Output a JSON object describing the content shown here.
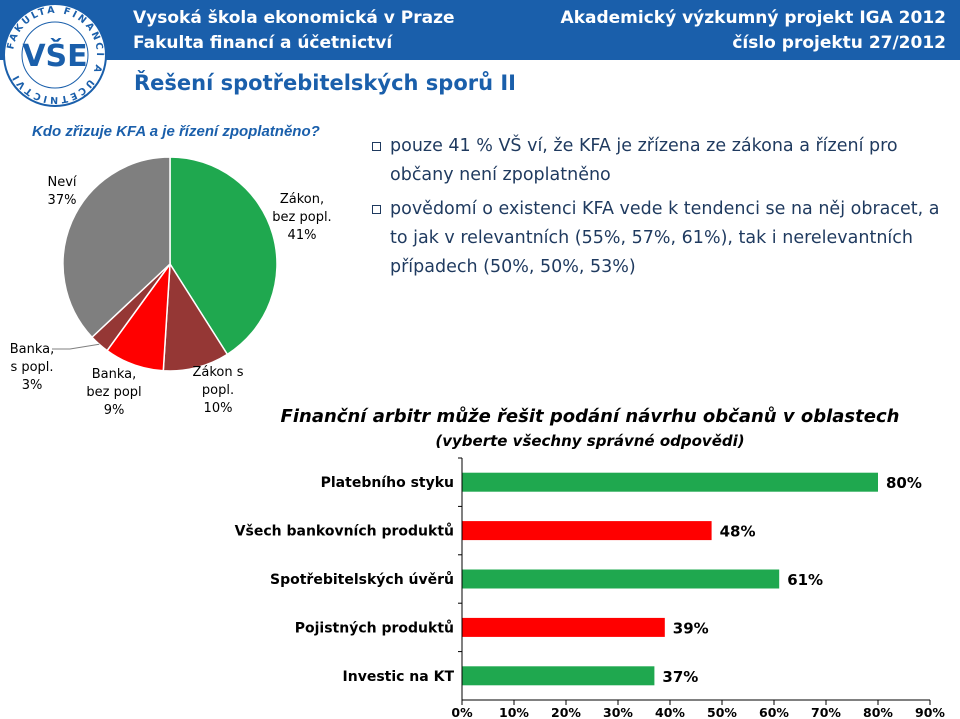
{
  "header": {
    "left_line1": "Vysoká škola ekonomická v Praze",
    "left_line2": "Fakulta financí a účetnictví",
    "right_line1": "Akademický výzkumný projekt IGA 2012",
    "right_line2": "číslo projektu 27/2012",
    "logo_text": "VŠE",
    "logo_ring_text": "FAKULTA FINANCÍ A ÚČETNICTVÍ"
  },
  "slide_title": "Řešení spotřebitelských sporů II",
  "colors": {
    "header_bg": "#1a5fab",
    "green": "#1fa84f",
    "red": "#ff0000",
    "dark_red": "#953735",
    "gray": "#7f7f7f",
    "title_blue": "#1a5fab",
    "bullet_text": "#1f3a5f"
  },
  "bullets": [
    "pouze 41 % VŠ ví, že KFA je zřízena ze zákona a řízení pro občany není zpoplatněno",
    "povědomí o existenci KFA vede k tendenci se na něj obracet, a to jak v relevantních (55%, 57%, 61%), tak i nerelevantních případech (50%, 50%, 53%)"
  ],
  "chart_data": [
    {
      "type": "pie",
      "title": "Kdo zřizuje KFA a je řízení zpoplatněno?",
      "slices": [
        {
          "label": "Zákon, bez popl.",
          "value": 41,
          "value_label": "41%",
          "color": "#1fa84f"
        },
        {
          "label": "Zákon s popl.",
          "value": 10,
          "value_label": "10%",
          "color": "#953735"
        },
        {
          "label": "Banka, bez popl",
          "value": 9,
          "value_label": "9%",
          "color": "#ff0000"
        },
        {
          "label": "Banka, s popl.",
          "value": 3,
          "value_label": "3%",
          "color": "#953735"
        },
        {
          "label": "Neví",
          "value": 37,
          "value_label": "37%",
          "color": "#7f7f7f"
        }
      ]
    },
    {
      "type": "bar",
      "orientation": "horizontal",
      "title": "Finanční arbitr může řešit podání návrhu občanů v oblastech",
      "subtitle": "(vyberte všechny správné odpovědi)",
      "categories": [
        "Platebního styku",
        "Všech bankovních produktů",
        "Spotřebitelských úvěrů",
        "Pojistných produktů",
        "Investic na KT"
      ],
      "values": [
        80,
        48,
        61,
        39,
        37
      ],
      "value_labels": [
        "80%",
        "48%",
        "61%",
        "39%",
        "37%"
      ],
      "colors": [
        "#1fa84f",
        "#ff0000",
        "#1fa84f",
        "#ff0000",
        "#1fa84f"
      ],
      "xlim": [
        0,
        90
      ],
      "x_ticks": [
        "0%",
        "10%",
        "20%",
        "30%",
        "40%",
        "50%",
        "60%",
        "70%",
        "80%",
        "90%"
      ],
      "grid": false
    }
  ]
}
